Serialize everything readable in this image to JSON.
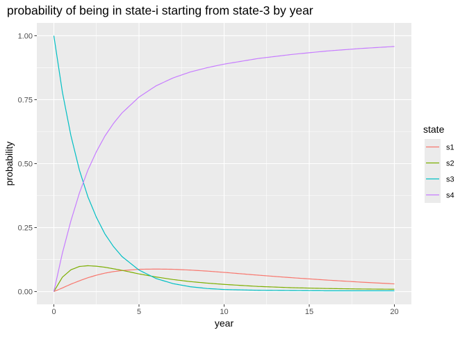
{
  "chart_data": {
    "type": "line",
    "title": "probability of being in state-i starting from state-3 by year",
    "xlabel": "year",
    "ylabel": "probability",
    "xlim": [
      -1,
      21
    ],
    "ylim": [
      -0.05,
      1.05
    ],
    "x_ticks": [
      0,
      5,
      10,
      15,
      20
    ],
    "x_tick_labels": [
      "0",
      "5",
      "10",
      "15",
      "20"
    ],
    "y_ticks": [
      0,
      0.25,
      0.5,
      0.75,
      1.0
    ],
    "y_tick_labels": [
      "0.00",
      "0.25",
      "0.50",
      "0.75",
      "1.00"
    ],
    "grid": true,
    "legend": {
      "title": "state",
      "position": "right"
    },
    "x": [
      0,
      0.5,
      1,
      1.5,
      2,
      2.5,
      3,
      3.5,
      4,
      5,
      6,
      7,
      8,
      9,
      10,
      12,
      14,
      16,
      18,
      20
    ],
    "series": [
      {
        "name": "s1",
        "color": "#F8766D",
        "values": [
          0.0,
          0.014,
          0.029,
          0.042,
          0.054,
          0.064,
          0.072,
          0.078,
          0.082,
          0.087,
          0.088,
          0.087,
          0.084,
          0.08,
          0.075,
          0.064,
          0.054,
          0.045,
          0.037,
          0.03
        ]
      },
      {
        "name": "s2",
        "color": "#7CAE00",
        "values": [
          0.0,
          0.056,
          0.085,
          0.098,
          0.101,
          0.099,
          0.095,
          0.089,
          0.083,
          0.069,
          0.057,
          0.047,
          0.039,
          0.033,
          0.028,
          0.02,
          0.015,
          0.012,
          0.01,
          0.009
        ]
      },
      {
        "name": "s3",
        "color": "#00BFC4",
        "values": [
          1.0,
          0.78,
          0.61,
          0.475,
          0.37,
          0.29,
          0.225,
          0.176,
          0.137,
          0.084,
          0.051,
          0.031,
          0.019,
          0.012,
          0.008,
          0.005,
          0.004,
          0.003,
          0.003,
          0.003
        ]
      },
      {
        "name": "s4",
        "color": "#C77CFF",
        "values": [
          0.0,
          0.15,
          0.276,
          0.385,
          0.475,
          0.547,
          0.608,
          0.657,
          0.698,
          0.76,
          0.804,
          0.835,
          0.858,
          0.875,
          0.889,
          0.911,
          0.927,
          0.94,
          0.95,
          0.958
        ]
      }
    ]
  }
}
